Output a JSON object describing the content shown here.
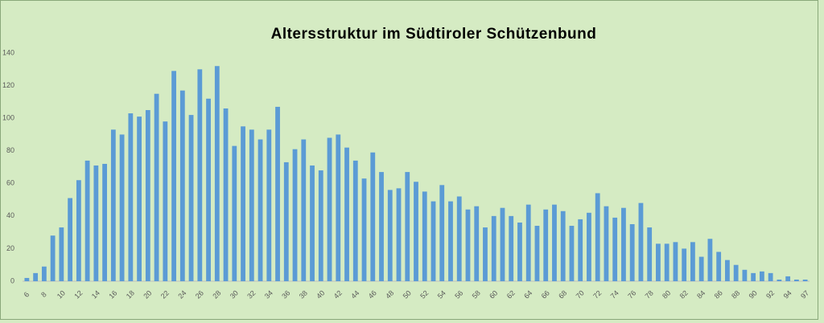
{
  "chart_data": {
    "type": "bar",
    "title": "Altersstruktur im Südtiroler Schützenbund",
    "categories": [
      "6",
      null,
      "8",
      null,
      "10",
      null,
      "12",
      null,
      "14",
      null,
      "16",
      null,
      "18",
      null,
      "20",
      null,
      "22",
      null,
      "24",
      null,
      "26",
      null,
      "28",
      null,
      "30",
      null,
      "32",
      null,
      "34",
      null,
      "36",
      null,
      "38",
      null,
      "40",
      null,
      "42",
      null,
      "44",
      null,
      "46",
      null,
      "48",
      null,
      "50",
      null,
      "52",
      null,
      "54",
      null,
      "56",
      null,
      "58",
      null,
      "60",
      null,
      "62",
      null,
      "64",
      null,
      "66",
      null,
      "68",
      null,
      "70",
      null,
      "72",
      null,
      "74",
      null,
      "76",
      null,
      "78",
      null,
      "80",
      null,
      "82",
      null,
      "84",
      null,
      "86",
      null,
      "88",
      null,
      "90",
      null,
      "92",
      null,
      "94",
      null,
      "97"
    ],
    "values": [
      2,
      5,
      9,
      28,
      33,
      51,
      62,
      74,
      71,
      72,
      93,
      90,
      103,
      101,
      105,
      115,
      98,
      129,
      117,
      102,
      130,
      112,
      132,
      106,
      83,
      95,
      93,
      87,
      93,
      107,
      73,
      81,
      87,
      71,
      68,
      88,
      90,
      82,
      74,
      63,
      79,
      67,
      56,
      57,
      67,
      61,
      55,
      49,
      59,
      49,
      52,
      44,
      46,
      33,
      40,
      45,
      40,
      36,
      47,
      34,
      44,
      47,
      43,
      34,
      38,
      42,
      54,
      46,
      39,
      45,
      35,
      48,
      33,
      23,
      23,
      24,
      20,
      24,
      15,
      26,
      18,
      13,
      10,
      7,
      5,
      6,
      5,
      1,
      3,
      1,
      1
    ],
    "color": "#5b9bd5",
    "ylim": [
      0,
      140
    ],
    "yticks": [
      0,
      20,
      40,
      60,
      80,
      100,
      120,
      140
    ],
    "grid": false
  }
}
